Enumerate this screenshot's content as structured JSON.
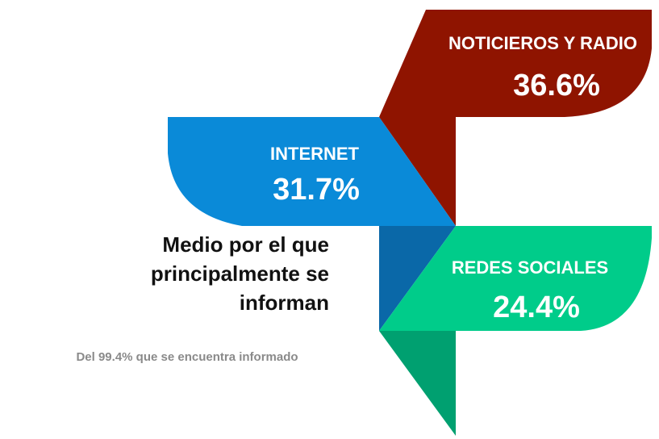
{
  "title": [
    "Medio por el que",
    "principalmente se",
    "informan"
  ],
  "subtitle": "Del 99.4% que se encuentra informado",
  "items": [
    {
      "label": "NOTICIEROS Y RADIO",
      "value": "36.6%"
    },
    {
      "label": "INTERNET",
      "value": "31.7%"
    },
    {
      "label": "REDES SOCIALES",
      "value": "24.4%"
    }
  ]
}
